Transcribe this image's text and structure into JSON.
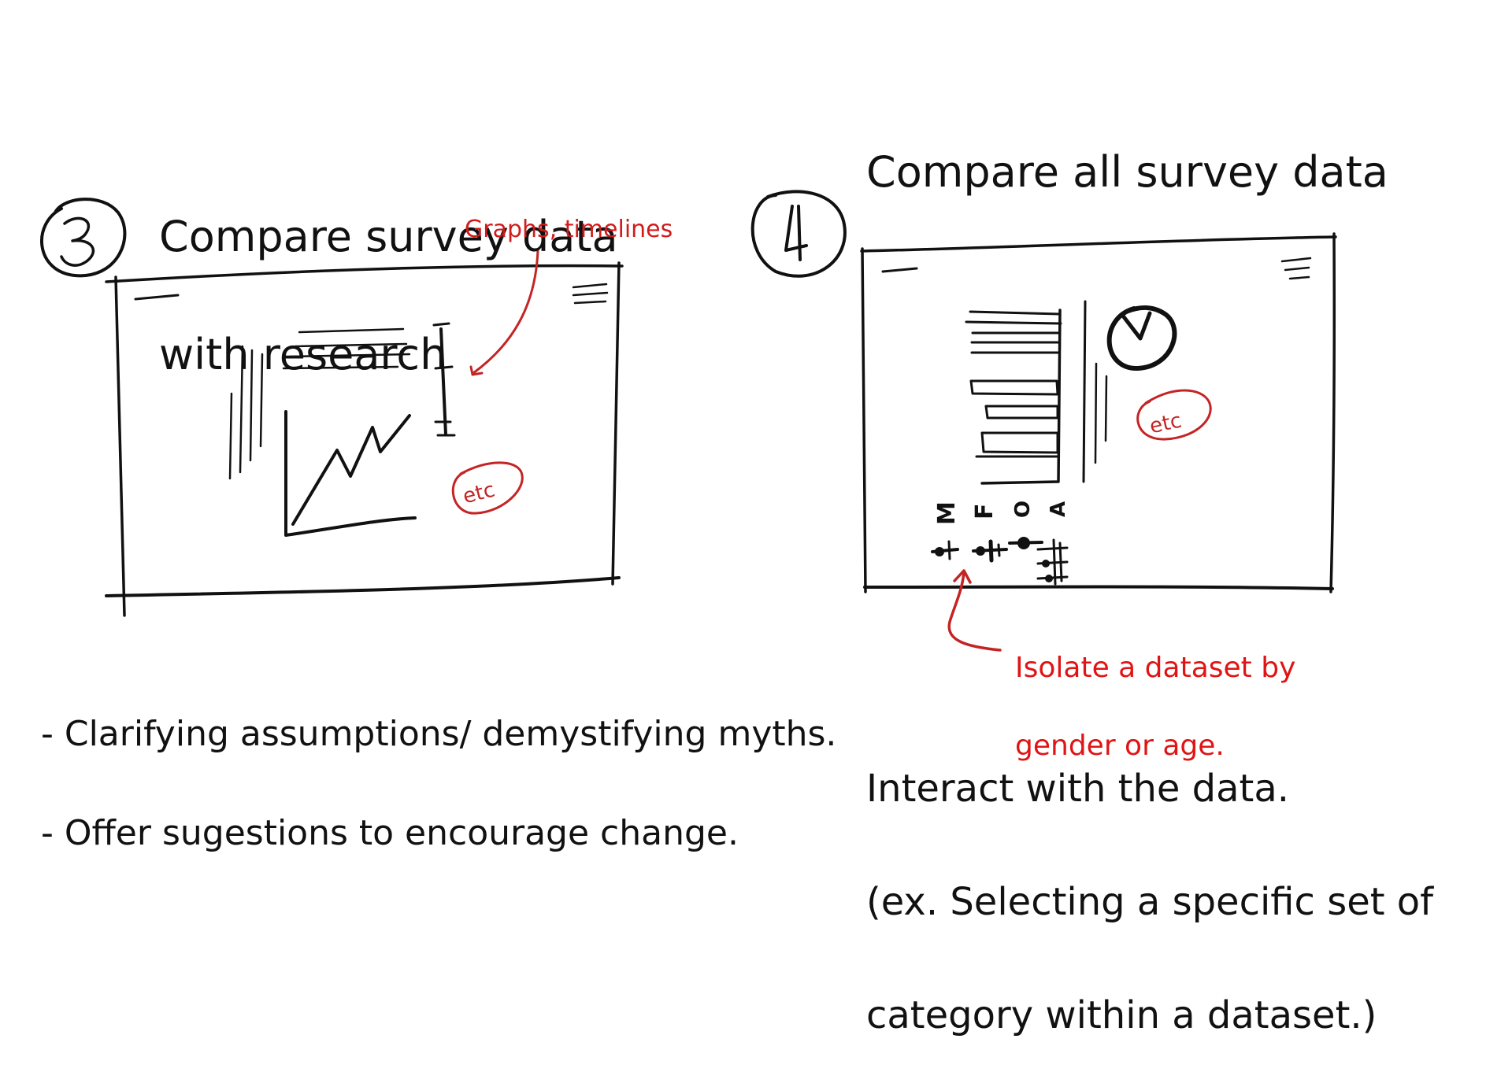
{
  "panel3": {
    "number": "3",
    "title_lines": [
      "Compare survey data",
      "with research"
    ],
    "annotation": "Graphs, timelines",
    "etc_label": "etc",
    "bullets": [
      "- Clarifying assumptions/ demystifying myths.",
      "- Offer sugestions to encourage change."
    ]
  },
  "panel4": {
    "number": "4",
    "title": "Compare all survey data",
    "etc_label": "etc",
    "filter_letters": [
      "M",
      "F",
      "O",
      "A"
    ],
    "annotation_lines": [
      "Isolate a dataset by",
      "gender or age."
    ],
    "interact_lines": [
      "Interact with the data.",
      "(ex. Selecting a specific set of",
      "category within a dataset.)"
    ]
  },
  "colors": {
    "ink": "#111111",
    "annotation_red": "#d21b1b"
  }
}
